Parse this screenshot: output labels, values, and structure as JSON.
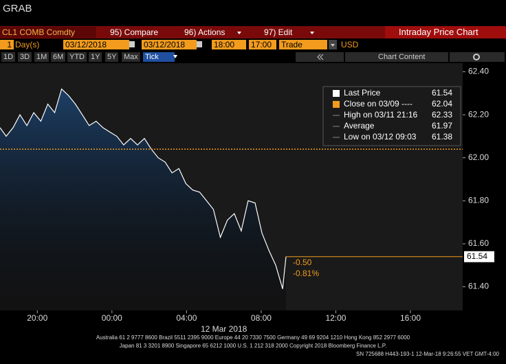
{
  "header": {
    "title": "GRAB"
  },
  "toolbar": {
    "security": "CL1 COMB Comdty",
    "compare": "95) Compare",
    "actions": "96) Actions",
    "edit": "97) Edit",
    "chart_title": "Intraday Price Chart"
  },
  "settings": {
    "period": "1",
    "period_unit": "Day(s)",
    "start_date": "03/12/2018",
    "end_date": "03/12/2018",
    "start_time": "18:00",
    "end_time": "17:00",
    "field": "Trade",
    "currency": "USD"
  },
  "range_buttons": [
    "1D",
    "3D",
    "1M",
    "6M",
    "YTD",
    "1Y",
    "5Y",
    "Max",
    "Tick"
  ],
  "chart_content": "Chart Content",
  "chart_data": {
    "type": "line",
    "x": [
      18.0,
      18.33,
      18.7,
      19.07,
      19.44,
      19.81,
      20.19,
      20.56,
      20.93,
      21.3,
      21.67,
      22.04,
      22.41,
      22.78,
      23.15,
      23.52,
      23.89,
      24.26,
      24.63,
      25.0,
      25.37,
      25.74,
      26.11,
      26.48,
      26.85,
      27.22,
      27.59,
      27.96,
      28.33,
      28.7,
      29.07,
      29.44,
      29.81,
      30.19,
      30.56,
      30.93,
      31.3,
      31.67,
      32.04,
      32.41,
      32.78,
      33.15,
      33.33
    ],
    "series": [
      {
        "name": "Last Price",
        "color": "#ffffff",
        "values": [
          62.14,
          62.1,
          62.14,
          62.2,
          62.15,
          62.21,
          62.17,
          62.25,
          62.21,
          62.32,
          62.29,
          62.25,
          62.2,
          62.15,
          62.17,
          62.14,
          62.12,
          62.1,
          62.06,
          62.09,
          62.06,
          62.09,
          62.04,
          62.0,
          61.98,
          61.93,
          61.95,
          61.88,
          61.85,
          61.84,
          61.8,
          61.76,
          61.63,
          61.71,
          61.74,
          61.66,
          61.8,
          61.79,
          61.65,
          61.57,
          61.5,
          61.39,
          61.54
        ]
      }
    ],
    "area_color": "#1d3f66",
    "last_value": 61.54,
    "last_color": "#f29b1d",
    "stats": [
      {
        "label": "Close on 03/09 ----",
        "value": 62.04,
        "color": "#f29b1d"
      },
      {
        "label": "High on 03/11 21:16",
        "value": 62.33
      },
      {
        "label": "Average",
        "value": 61.97
      },
      {
        "label": "Low on 03/12 09:03",
        "value": 61.38
      }
    ],
    "change": {
      "value": -0.5,
      "label": "-0.50"
    },
    "change_pct": {
      "value": -0.81,
      "label": "-0.81%"
    },
    "xlim": [
      18,
      42.8
    ],
    "ylim": [
      61.29,
      62.44
    ],
    "xticks": [
      {
        "value": 20,
        "label": "20:00"
      },
      {
        "value": 24,
        "label": "00:00"
      },
      {
        "value": 28,
        "label": "04:00"
      },
      {
        "value": 32,
        "label": "08:00"
      },
      {
        "value": 36,
        "label": "12:00"
      },
      {
        "value": 40,
        "label": "16:00"
      }
    ],
    "xlabel": "12 Mar 2018",
    "yticks": [
      {
        "value": 61.4,
        "label": "61.40"
      },
      {
        "value": 61.6,
        "label": "61.60"
      },
      {
        "value": 61.8,
        "label": "61.80"
      },
      {
        "value": 62.0,
        "label": "62.00"
      },
      {
        "value": 62.2,
        "label": "62.20"
      },
      {
        "value": 62.4,
        "label": "62.40"
      }
    ]
  },
  "footer": [
    "Australia 61 2 9777 8600 Brazil 5511 2395 9000 Europe 44 20 7330 7500 Germany 49 69 9204 1210 Hong Kong 852 2977 6000",
    "Japan 81 3 3201 8900 Singapore 65 6212 1000 U.S. 1 212 318 2000 Copyright 2018 Bloomberg Finance L.P.",
    "SN 725688 H443-193-1 12-Mar-18 9:26:55 VET GMT-4:00"
  ]
}
